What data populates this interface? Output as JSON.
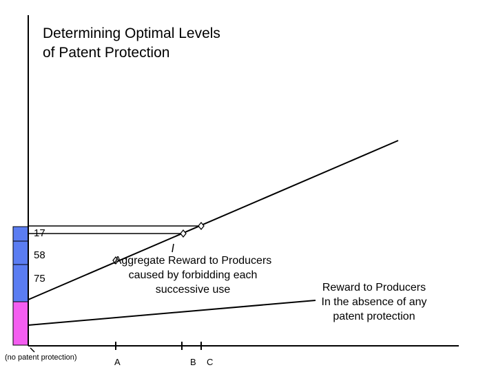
{
  "title": "Determining Optimal Levels\nof Patent Protection",
  "bar_labels": [
    "17",
    "58",
    "75"
  ],
  "origin_label": "(no patent protection)",
  "x_ticks": [
    "A",
    "B",
    "C"
  ],
  "aggregate_reward_label": "Aggregate Reward to Producers\ncaused by forbidding each\nsuccessive use",
  "baseline_reward_label": "Reward to Producers\nIn the absence of any\npatent protection",
  "colors": {
    "axis": "#000000",
    "blue_segment": "#5b7df2",
    "pink_segment": "#f45ef0",
    "marker": "#000000"
  }
}
